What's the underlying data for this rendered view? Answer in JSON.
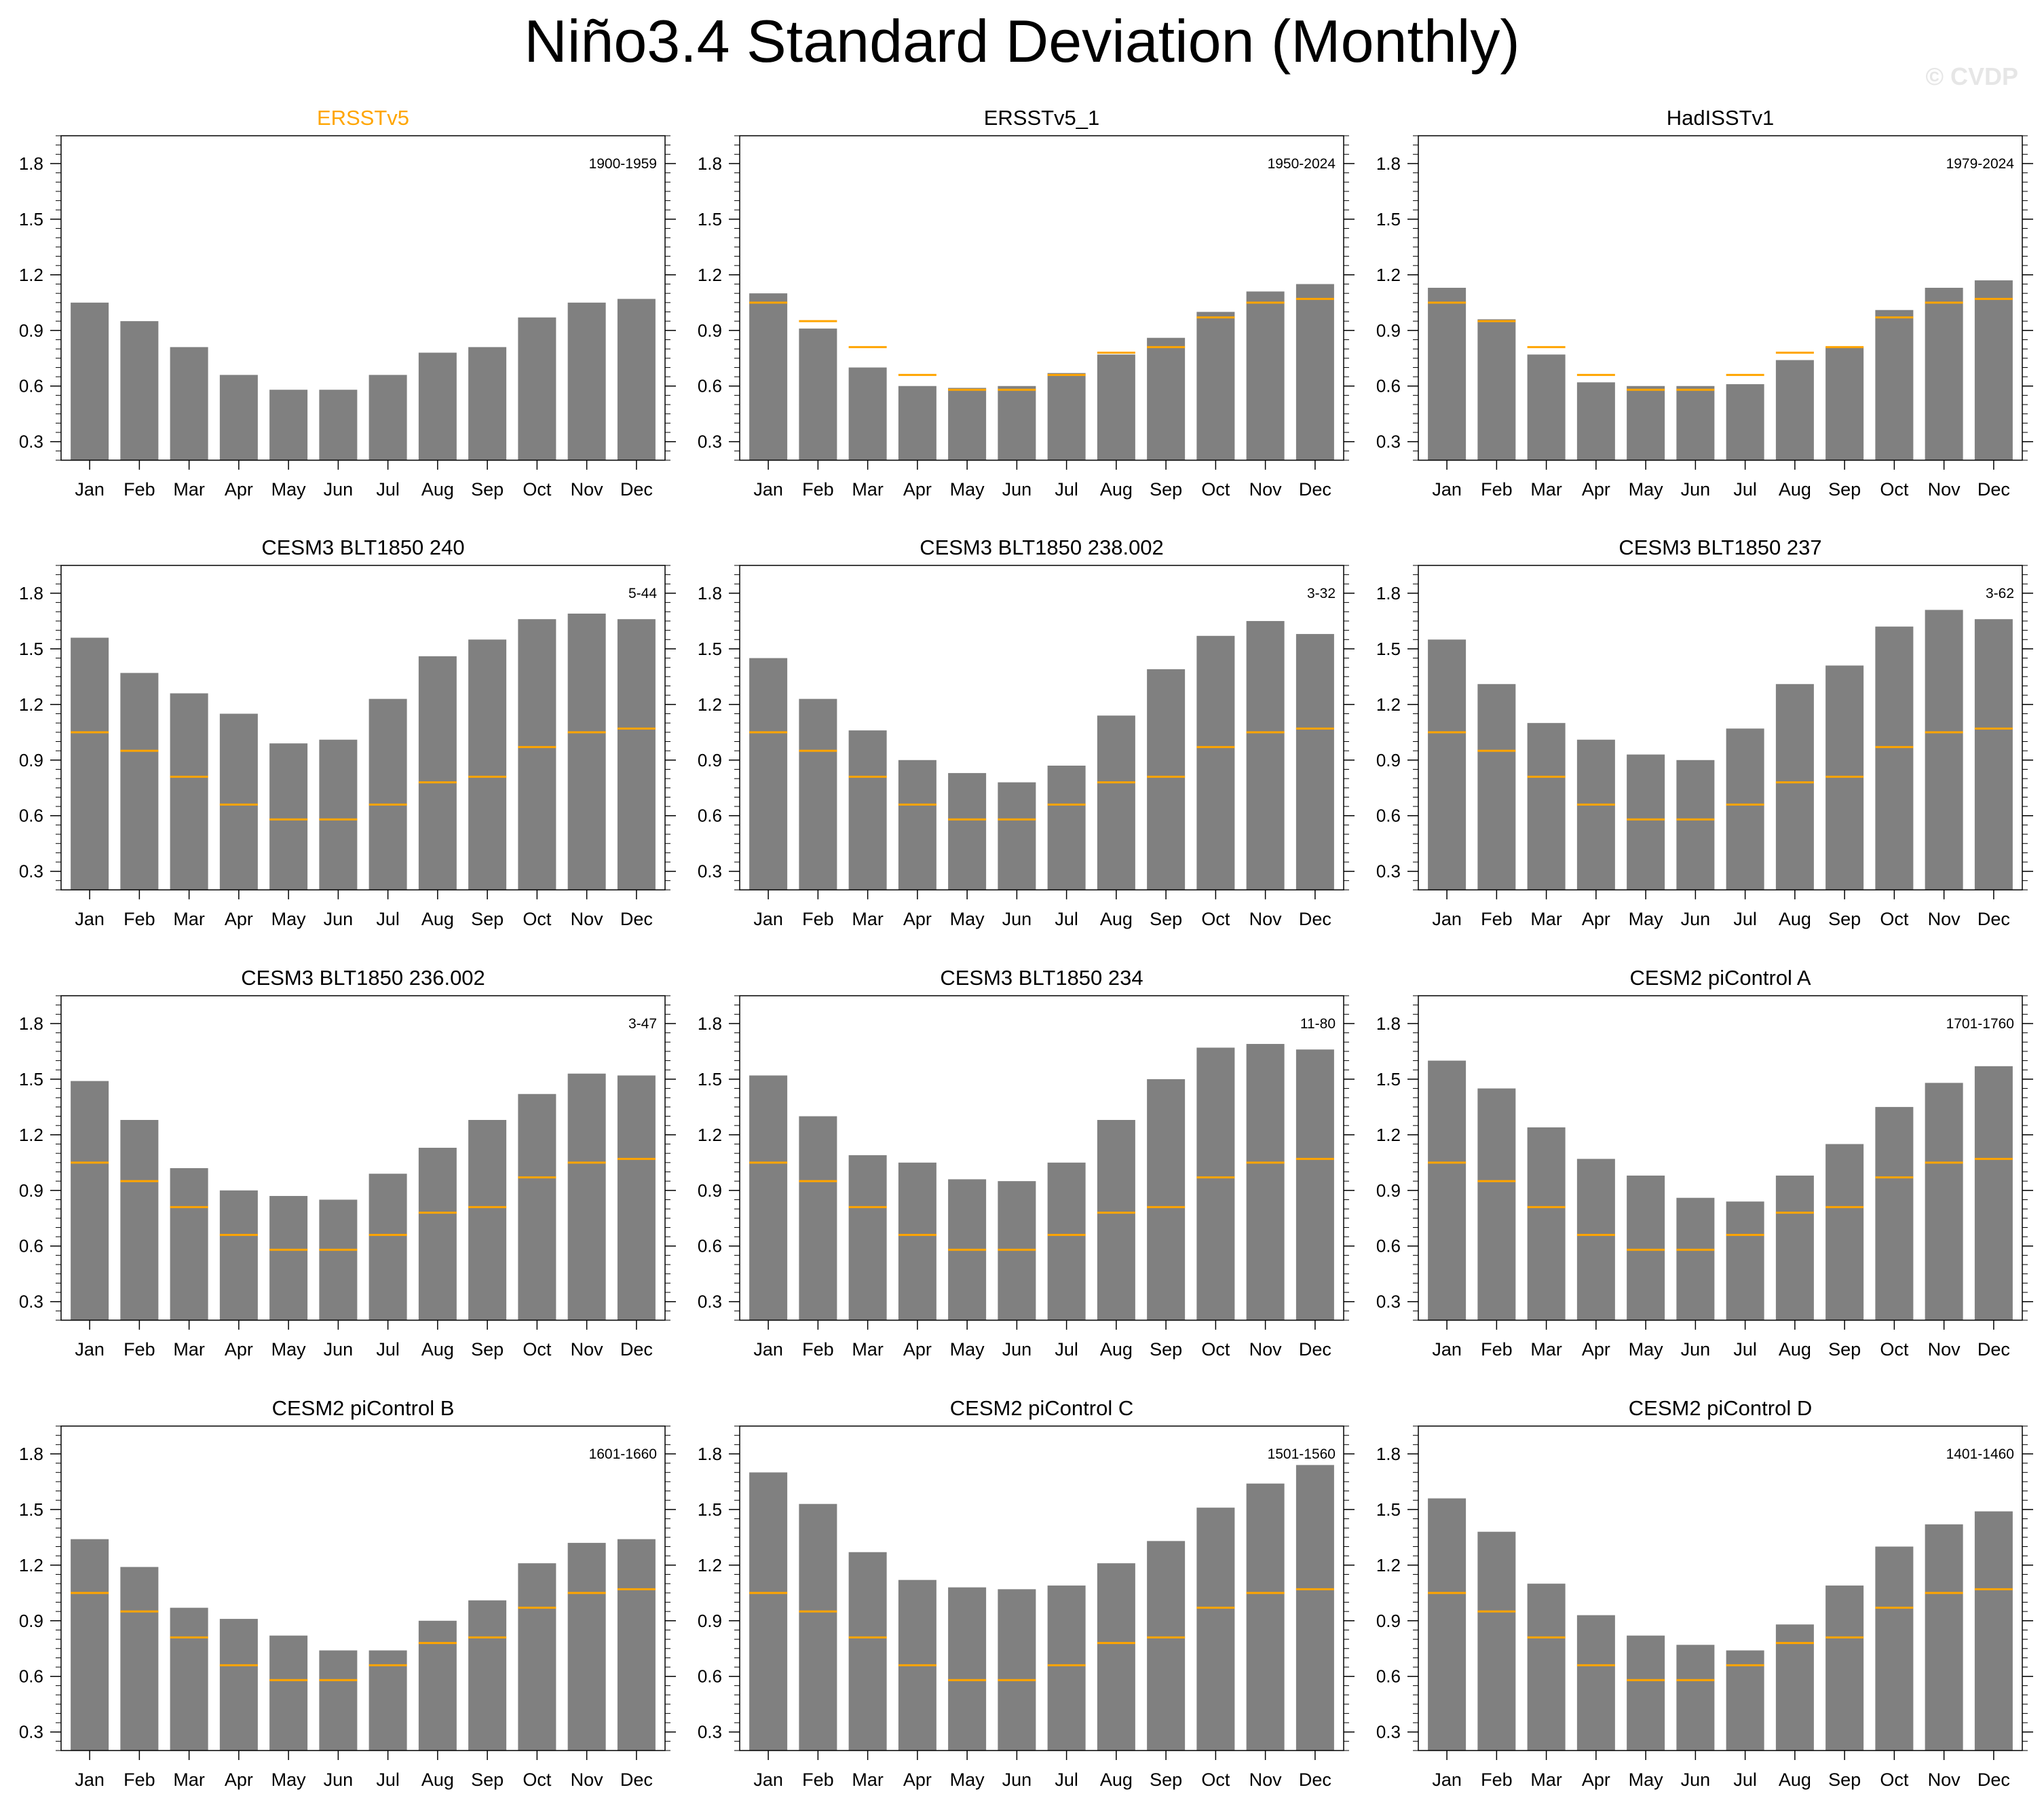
{
  "title": "Niño3.4 Standard Deviation (Monthly)",
  "watermark": "© CVDP",
  "colors": {
    "bar": "#808080",
    "obs": "#ffa500",
    "frame": "#000000",
    "obs_title": "#ffa500"
  },
  "chart_data": [
    {
      "type": "bar",
      "title": "ERSSTv5",
      "period": "1900-1959",
      "title_color": "#ffa500",
      "categories": [
        "Jan",
        "Feb",
        "Mar",
        "Apr",
        "May",
        "Jun",
        "Jul",
        "Aug",
        "Sep",
        "Oct",
        "Nov",
        "Dec"
      ],
      "values": [
        1.05,
        0.95,
        0.81,
        0.66,
        0.58,
        0.58,
        0.66,
        0.78,
        0.81,
        0.97,
        1.05,
        1.07
      ],
      "reference": [
        1.05,
        0.95,
        0.81,
        0.66,
        0.58,
        0.58,
        0.66,
        0.78,
        0.81,
        0.97,
        1.05,
        1.07
      ],
      "ylim": [
        0.2,
        1.95
      ],
      "yticks": [
        0.3,
        0.6,
        0.9,
        1.2,
        1.5,
        1.8
      ],
      "show_reference": false
    },
    {
      "type": "bar",
      "title": "ERSSTv5_1",
      "period": "1950-2024",
      "title_color": "#000000",
      "categories": [
        "Jan",
        "Feb",
        "Mar",
        "Apr",
        "May",
        "Jun",
        "Jul",
        "Aug",
        "Sep",
        "Oct",
        "Nov",
        "Dec"
      ],
      "values": [
        1.1,
        0.91,
        0.7,
        0.6,
        0.59,
        0.6,
        0.67,
        0.77,
        0.86,
        1.0,
        1.11,
        1.15
      ],
      "reference": [
        1.05,
        0.95,
        0.81,
        0.66,
        0.58,
        0.58,
        0.66,
        0.78,
        0.81,
        0.97,
        1.05,
        1.07
      ],
      "ylim": [
        0.2,
        1.95
      ],
      "yticks": [
        0.3,
        0.6,
        0.9,
        1.2,
        1.5,
        1.8
      ],
      "show_reference": true
    },
    {
      "type": "bar",
      "title": "HadISSTv1",
      "period": "1979-2024",
      "title_color": "#000000",
      "categories": [
        "Jan",
        "Feb",
        "Mar",
        "Apr",
        "May",
        "Jun",
        "Jul",
        "Aug",
        "Sep",
        "Oct",
        "Nov",
        "Dec"
      ],
      "values": [
        1.13,
        0.96,
        0.77,
        0.62,
        0.6,
        0.6,
        0.61,
        0.74,
        0.81,
        1.01,
        1.13,
        1.17
      ],
      "reference": [
        1.05,
        0.95,
        0.81,
        0.66,
        0.58,
        0.58,
        0.66,
        0.78,
        0.81,
        0.97,
        1.05,
        1.07
      ],
      "ylim": [
        0.2,
        1.95
      ],
      "yticks": [
        0.3,
        0.6,
        0.9,
        1.2,
        1.5,
        1.8
      ],
      "show_reference": true
    },
    {
      "type": "bar",
      "title": "CESM3 BLT1850 240",
      "period": "5-44",
      "title_color": "#000000",
      "categories": [
        "Jan",
        "Feb",
        "Mar",
        "Apr",
        "May",
        "Jun",
        "Jul",
        "Aug",
        "Sep",
        "Oct",
        "Nov",
        "Dec"
      ],
      "values": [
        1.56,
        1.37,
        1.26,
        1.15,
        0.99,
        1.01,
        1.23,
        1.46,
        1.55,
        1.66,
        1.69,
        1.66
      ],
      "reference": [
        1.05,
        0.95,
        0.81,
        0.66,
        0.58,
        0.58,
        0.66,
        0.78,
        0.81,
        0.97,
        1.05,
        1.07
      ],
      "ylim": [
        0.2,
        1.95
      ],
      "yticks": [
        0.3,
        0.6,
        0.9,
        1.2,
        1.5,
        1.8
      ],
      "show_reference": true
    },
    {
      "type": "bar",
      "title": "CESM3 BLT1850 238.002",
      "period": "3-32",
      "title_color": "#000000",
      "categories": [
        "Jan",
        "Feb",
        "Mar",
        "Apr",
        "May",
        "Jun",
        "Jul",
        "Aug",
        "Sep",
        "Oct",
        "Nov",
        "Dec"
      ],
      "values": [
        1.45,
        1.23,
        1.06,
        0.9,
        0.83,
        0.78,
        0.87,
        1.14,
        1.39,
        1.57,
        1.65,
        1.58
      ],
      "reference": [
        1.05,
        0.95,
        0.81,
        0.66,
        0.58,
        0.58,
        0.66,
        0.78,
        0.81,
        0.97,
        1.05,
        1.07
      ],
      "ylim": [
        0.2,
        1.95
      ],
      "yticks": [
        0.3,
        0.6,
        0.9,
        1.2,
        1.5,
        1.8
      ],
      "show_reference": true
    },
    {
      "type": "bar",
      "title": "CESM3 BLT1850 237",
      "period": "3-62",
      "title_color": "#000000",
      "categories": [
        "Jan",
        "Feb",
        "Mar",
        "Apr",
        "May",
        "Jun",
        "Jul",
        "Aug",
        "Sep",
        "Oct",
        "Nov",
        "Dec"
      ],
      "values": [
        1.55,
        1.31,
        1.1,
        1.01,
        0.93,
        0.9,
        1.07,
        1.31,
        1.41,
        1.62,
        1.71,
        1.66
      ],
      "reference": [
        1.05,
        0.95,
        0.81,
        0.66,
        0.58,
        0.58,
        0.66,
        0.78,
        0.81,
        0.97,
        1.05,
        1.07
      ],
      "ylim": [
        0.2,
        1.95
      ],
      "yticks": [
        0.3,
        0.6,
        0.9,
        1.2,
        1.5,
        1.8
      ],
      "show_reference": true
    },
    {
      "type": "bar",
      "title": "CESM3 BLT1850 236.002",
      "period": "3-47",
      "title_color": "#000000",
      "categories": [
        "Jan",
        "Feb",
        "Mar",
        "Apr",
        "May",
        "Jun",
        "Jul",
        "Aug",
        "Sep",
        "Oct",
        "Nov",
        "Dec"
      ],
      "values": [
        1.49,
        1.28,
        1.02,
        0.9,
        0.87,
        0.85,
        0.99,
        1.13,
        1.28,
        1.42,
        1.53,
        1.52
      ],
      "reference": [
        1.05,
        0.95,
        0.81,
        0.66,
        0.58,
        0.58,
        0.66,
        0.78,
        0.81,
        0.97,
        1.05,
        1.07
      ],
      "ylim": [
        0.2,
        1.95
      ],
      "yticks": [
        0.3,
        0.6,
        0.9,
        1.2,
        1.5,
        1.8
      ],
      "show_reference": true
    },
    {
      "type": "bar",
      "title": "CESM3 BLT1850 234",
      "period": "11-80",
      "title_color": "#000000",
      "categories": [
        "Jan",
        "Feb",
        "Mar",
        "Apr",
        "May",
        "Jun",
        "Jul",
        "Aug",
        "Sep",
        "Oct",
        "Nov",
        "Dec"
      ],
      "values": [
        1.52,
        1.3,
        1.09,
        1.05,
        0.96,
        0.95,
        1.05,
        1.28,
        1.5,
        1.67,
        1.69,
        1.66
      ],
      "reference": [
        1.05,
        0.95,
        0.81,
        0.66,
        0.58,
        0.58,
        0.66,
        0.78,
        0.81,
        0.97,
        1.05,
        1.07
      ],
      "ylim": [
        0.2,
        1.95
      ],
      "yticks": [
        0.3,
        0.6,
        0.9,
        1.2,
        1.5,
        1.8
      ],
      "show_reference": true
    },
    {
      "type": "bar",
      "title": "CESM2 piControl A",
      "period": "1701-1760",
      "title_color": "#000000",
      "categories": [
        "Jan",
        "Feb",
        "Mar",
        "Apr",
        "May",
        "Jun",
        "Jul",
        "Aug",
        "Sep",
        "Oct",
        "Nov",
        "Dec"
      ],
      "values": [
        1.6,
        1.45,
        1.24,
        1.07,
        0.98,
        0.86,
        0.84,
        0.98,
        1.15,
        1.35,
        1.48,
        1.57
      ],
      "reference": [
        1.05,
        0.95,
        0.81,
        0.66,
        0.58,
        0.58,
        0.66,
        0.78,
        0.81,
        0.97,
        1.05,
        1.07
      ],
      "ylim": [
        0.2,
        1.95
      ],
      "yticks": [
        0.3,
        0.6,
        0.9,
        1.2,
        1.5,
        1.8
      ],
      "show_reference": true
    },
    {
      "type": "bar",
      "title": "CESM2 piControl B",
      "period": "1601-1660",
      "title_color": "#000000",
      "categories": [
        "Jan",
        "Feb",
        "Mar",
        "Apr",
        "May",
        "Jun",
        "Jul",
        "Aug",
        "Sep",
        "Oct",
        "Nov",
        "Dec"
      ],
      "values": [
        1.34,
        1.19,
        0.97,
        0.91,
        0.82,
        0.74,
        0.74,
        0.9,
        1.01,
        1.21,
        1.32,
        1.34
      ],
      "reference": [
        1.05,
        0.95,
        0.81,
        0.66,
        0.58,
        0.58,
        0.66,
        0.78,
        0.81,
        0.97,
        1.05,
        1.07
      ],
      "ylim": [
        0.2,
        1.95
      ],
      "yticks": [
        0.3,
        0.6,
        0.9,
        1.2,
        1.5,
        1.8
      ],
      "show_reference": true
    },
    {
      "type": "bar",
      "title": "CESM2 piControl C",
      "period": "1501-1560",
      "title_color": "#000000",
      "categories": [
        "Jan",
        "Feb",
        "Mar",
        "Apr",
        "May",
        "Jun",
        "Jul",
        "Aug",
        "Sep",
        "Oct",
        "Nov",
        "Dec"
      ],
      "values": [
        1.7,
        1.53,
        1.27,
        1.12,
        1.08,
        1.07,
        1.09,
        1.21,
        1.33,
        1.51,
        1.64,
        1.74
      ],
      "reference": [
        1.05,
        0.95,
        0.81,
        0.66,
        0.58,
        0.58,
        0.66,
        0.78,
        0.81,
        0.97,
        1.05,
        1.07
      ],
      "ylim": [
        0.2,
        1.95
      ],
      "yticks": [
        0.3,
        0.6,
        0.9,
        1.2,
        1.5,
        1.8
      ],
      "show_reference": true
    },
    {
      "type": "bar",
      "title": "CESM2 piControl D",
      "period": "1401-1460",
      "title_color": "#000000",
      "categories": [
        "Jan",
        "Feb",
        "Mar",
        "Apr",
        "May",
        "Jun",
        "Jul",
        "Aug",
        "Sep",
        "Oct",
        "Nov",
        "Dec"
      ],
      "values": [
        1.56,
        1.38,
        1.1,
        0.93,
        0.82,
        0.77,
        0.74,
        0.88,
        1.09,
        1.3,
        1.42,
        1.49
      ],
      "reference": [
        1.05,
        0.95,
        0.81,
        0.66,
        0.58,
        0.58,
        0.66,
        0.78,
        0.81,
        0.97,
        1.05,
        1.07
      ],
      "ylim": [
        0.2,
        1.95
      ],
      "yticks": [
        0.3,
        0.6,
        0.9,
        1.2,
        1.5,
        1.8
      ],
      "show_reference": true
    }
  ]
}
